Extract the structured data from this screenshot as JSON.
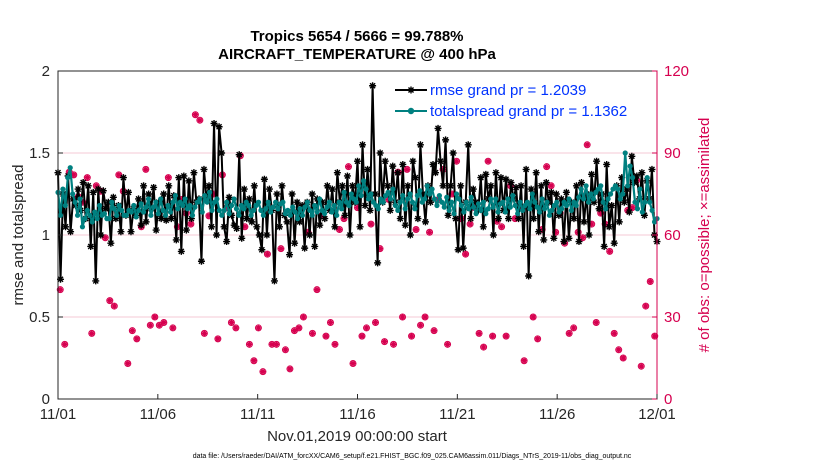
{
  "chart_data": {
    "type": "line",
    "title": "Tropics 5654 / 5666 = 99.788%",
    "subtitle": "AIRCRAFT_TEMPERATURE @ 400 hPa",
    "ylabel": "rmse and totalspread",
    "ylabel_right": "# of obs: o=possible; ×=assimilated",
    "xlabel": "Nov.01,2019 00:00:00 start",
    "footnote": "data file: /Users/raeder/DAI/ATM_forcXX/CAM6_setup/f.e21.FHIST_BGC.f09_025.CAM6assim.011/Diags_NTrS_2019-11/obs_diag_output.nc",
    "xlim": [
      0,
      30
    ],
    "ylim": [
      0,
      2
    ],
    "ylim_right": [
      0,
      120
    ],
    "xticks": [
      0,
      5,
      10,
      15,
      20,
      25,
      30
    ],
    "xtick_labels": [
      "11/01",
      "11/06",
      "11/11",
      "11/16",
      "11/21",
      "11/26",
      "12/01"
    ],
    "yticks": [
      0,
      0.5,
      1,
      1.5,
      2
    ],
    "ytick_labels": [
      "0",
      "0.5",
      "1",
      "1.5",
      "2"
    ],
    "yticks_right": [
      0,
      30,
      60,
      90,
      120
    ],
    "ytick_labels_right": [
      "0",
      "30",
      "60",
      "90",
      "120"
    ],
    "legend_position": "top-right",
    "series": [
      {
        "name": "rmse grand pr = 1.2039",
        "color": "#000000",
        "marker": "asterisk",
        "values": [
          1.38,
          0.73,
          1.25,
          1.05,
          1.36,
          1.02,
          1.22,
          1.18,
          1.28,
          1.15,
          1.32,
          1.1,
          1.3,
          0.93,
          1.26,
          0.72,
          1.28,
          1.0,
          1.27,
          1.16,
          1.2,
          0.95,
          1.23,
          1.1,
          1.18,
          1.02,
          1.35,
          1.12,
          1.26,
          1.02,
          1.16,
          1.12,
          1.22,
          1.06,
          1.3,
          1.08,
          1.25,
          1.16,
          1.29,
          1.03,
          1.2,
          1.1,
          1.25,
          1.09,
          1.3,
          1.1,
          1.24,
          0.97,
          1.35,
          0.9,
          1.36,
          1.03,
          1.33,
          1.1,
          1.38,
          1.2,
          1.22,
          0.84,
          1.4,
          1.22,
          1.3,
          1.05,
          1.68,
          1.0,
          1.66,
          1.5,
          1.05,
          0.96,
          1.23,
          1.12,
          1.06,
          1.04,
          1.49,
          0.98,
          1.28,
          1.1,
          1.22,
          1.08,
          1.3,
          1.05,
          1.0,
          0.91,
          1.34,
          1.0,
          1.28,
          1.15,
          0.72,
          1.25,
          1.05,
          1.3,
          1.12,
          1.08,
          0.88,
          1.25,
          0.95,
          1.2,
          1.08,
          1.18,
          0.92,
          1.2,
          1.0,
          1.25,
          0.93,
          1.22,
          1.06,
          1.2,
          1.1,
          1.3,
          1.15,
          1.28,
          1.05,
          1.38,
          1.2,
          1.3,
          1.12,
          1.36,
          1.0,
          1.3,
          1.2,
          1.45,
          1.05,
          1.55,
          1.18,
          1.4,
          1.15,
          1.91,
          1.25,
          0.83,
          1.5,
          1.2,
          1.45,
          1.3,
          1.15,
          1.42,
          1.2,
          1.38,
          1.1,
          1.43,
          1.06,
          1.3,
          1.0,
          1.45,
          1.35,
          1.1,
          1.55,
          1.25,
          1.08,
          1.3,
          1.2,
          1.43,
          1.38,
          1.65,
          1.45,
          1.3,
          1.58,
          1.12,
          1.3,
          1.5,
          1.1,
          0.91,
          1.3,
          0.92,
          1.2,
          1.55,
          1.1,
          1.28,
          1.2,
          1.15,
          1.35,
          1.05,
          1.37,
          1.22,
          1.3,
          1.0,
          1.38,
          1.1,
          1.35,
          1.15,
          1.34,
          1.1,
          1.32,
          1.22,
          1.29,
          1.1,
          1.3,
          0.93,
          1.4,
          0.75,
          1.28,
          1.1,
          1.38,
          1.02,
          1.3,
          0.97,
          1.32,
          1.2,
          1.26,
          0.98,
          1.25,
          1.12,
          1.22,
          0.96,
          1.26,
          0.98,
          1.2,
          1.1,
          1.3,
          0.96,
          1.32,
          1.08,
          1.25,
          1.0,
          1.37,
          1.2,
          1.45,
          1.16,
          1.25,
          0.93,
          1.43,
          1.05,
          1.18,
          0.95,
          1.3,
          1.08,
          1.35,
          1.2,
          1.28,
          1.14,
          1.48,
          1.32,
          1.36,
          1.22,
          1.38,
          1.12,
          1.33,
          1.22,
          1.4,
          1.0,
          0.96
        ]
      },
      {
        "name": "totalspread grand pr = 1.1362",
        "color": "#008080",
        "marker": "circle",
        "values": [
          1.26,
          1.12,
          1.28,
          1.18,
          1.35,
          1.41,
          1.25,
          1.2,
          1.12,
          1.22,
          1.05,
          1.1,
          1.15,
          1.12,
          1.08,
          1.14,
          1.1,
          1.18,
          1.12,
          1.13,
          1.1,
          1.1,
          1.2,
          1.16,
          1.12,
          1.18,
          1.15,
          1.12,
          1.12,
          1.15,
          1.14,
          1.18,
          1.11,
          1.15,
          1.19,
          1.14,
          1.17,
          1.22,
          1.12,
          1.17,
          1.2,
          1.13,
          1.22,
          1.15,
          1.12,
          1.18,
          1.14,
          1.2,
          1.24,
          1.16,
          1.2,
          1.18,
          1.22,
          1.16,
          1.18,
          1.12,
          1.17,
          1.2,
          1.22,
          1.14,
          1.24,
          1.2,
          1.26,
          1.15,
          1.2,
          1.22,
          1.15,
          1.12,
          1.15,
          1.2,
          1.13,
          1.18,
          1.22,
          1.16,
          1.12,
          1.18,
          1.16,
          1.2,
          1.18,
          1.12,
          1.15,
          1.18,
          1.2,
          1.15,
          1.12,
          1.16,
          1.2,
          1.14,
          1.17,
          1.2,
          1.16,
          1.19,
          1.2,
          1.13,
          1.15,
          1.12,
          1.17,
          1.14,
          1.1,
          1.16,
          1.12,
          1.17,
          1.2,
          1.15,
          1.12,
          1.18,
          1.14,
          1.22,
          1.15,
          1.13,
          1.17,
          1.2,
          1.14,
          1.18,
          1.12,
          1.2,
          1.16,
          1.26,
          1.2,
          1.18,
          1.25,
          1.22,
          1.2,
          1.3,
          1.24,
          1.33,
          1.28,
          1.22,
          1.25,
          1.2,
          1.18,
          1.16,
          1.22,
          1.2,
          1.24,
          1.26,
          1.22,
          1.28,
          1.18,
          1.15,
          1.2,
          1.24,
          1.16,
          1.22,
          1.25,
          1.2,
          1.16,
          1.24,
          1.27,
          1.2,
          1.22,
          1.3,
          1.25,
          1.28,
          1.22,
          1.18,
          1.24,
          1.2,
          1.17,
          1.23,
          1.15,
          1.2,
          1.13,
          1.25,
          1.22,
          1.18,
          1.14,
          1.2,
          1.16,
          1.23,
          1.17,
          1.13,
          1.19,
          1.15,
          1.2,
          1.13,
          1.16,
          1.22,
          1.17,
          1.22,
          1.14,
          1.19,
          1.2,
          1.14,
          1.22,
          1.17,
          1.24,
          1.18,
          1.13,
          1.2,
          1.15,
          1.18,
          1.2,
          1.16,
          1.25,
          1.2,
          1.17,
          1.14,
          1.22,
          1.16,
          1.2,
          1.12,
          1.15,
          1.18,
          1.2,
          1.14,
          1.16,
          1.2,
          1.18,
          1.22,
          1.15,
          1.2,
          1.18,
          1.23,
          1.28,
          1.22,
          1.3,
          1.2,
          1.25,
          1.22,
          1.26,
          1.28,
          1.3,
          1.2,
          1.16,
          1.22,
          1.25,
          1.28,
          1.3,
          1.28,
          1.22,
          1.25,
          1.5,
          1.3,
          1.42,
          1.35,
          1.2,
          1.16,
          1.28,
          1.14,
          1.2,
          1.35,
          1.2,
          1.15,
          1.08,
          1.1
        ]
      },
      {
        "name": "# of obs possible",
        "axis": "right",
        "color": "#d6004f",
        "marker": "circle-open",
        "values": [
          40,
          20,
          83,
          82,
          74,
          72,
          81,
          24,
          78,
          76,
          59,
          36,
          34,
          82,
          76,
          13,
          25,
          22,
          63,
          84,
          27,
          30,
          27,
          28,
          81,
          26,
          63,
          73,
          68,
          64,
          104,
          102,
          24,
          67,
          75,
          22,
          82,
          70,
          28,
          26,
          89,
          63,
          20,
          14,
          26,
          10,
          53,
          20,
          20,
          55,
          18,
          11,
          25,
          26,
          30,
          61,
          24,
          40,
          67,
          23,
          28,
          20,
          62,
          66,
          85,
          13,
          70,
          23,
          26,
          64,
          28,
          55,
          21,
          73,
          20,
          83,
          30,
          84,
          23,
          62,
          27,
          30,
          61,
          25,
          73,
          84,
          20,
          75,
          87,
          66,
          53,
          64,
          70,
          24,
          19,
          87,
          23,
          65,
          63,
          23,
          78,
          66,
          70,
          14,
          71,
          30,
          22,
          62,
          85,
          78,
          61,
          68,
          57,
          24,
          26,
          61,
          59,
          93,
          64,
          28,
          68,
          64,
          54,
          24,
          18,
          15,
          69,
          70,
          80,
          12,
          34,
          43,
          23
        ]
      },
      {
        "name": "# of obs assimilated",
        "axis": "right",
        "color": "#d6004f",
        "marker": "cross",
        "values": [
          40,
          20,
          83,
          82,
          74,
          72,
          81,
          24,
          78,
          76,
          59,
          36,
          34,
          82,
          76,
          13,
          25,
          22,
          63,
          84,
          27,
          30,
          27,
          28,
          81,
          26,
          63,
          73,
          68,
          64,
          104,
          102,
          24,
          67,
          75,
          22,
          82,
          70,
          28,
          26,
          89,
          63,
          20,
          14,
          26,
          10,
          53,
          20,
          20,
          55,
          18,
          11,
          25,
          26,
          30,
          61,
          24,
          40,
          67,
          23,
          28,
          20,
          62,
          66,
          85,
          13,
          70,
          23,
          26,
          64,
          28,
          55,
          21,
          73,
          20,
          83,
          30,
          84,
          23,
          62,
          27,
          30,
          61,
          25,
          73,
          84,
          20,
          75,
          87,
          66,
          53,
          64,
          70,
          24,
          19,
          87,
          23,
          65,
          63,
          23,
          78,
          66,
          70,
          14,
          71,
          30,
          22,
          62,
          85,
          78,
          61,
          68,
          57,
          24,
          26,
          61,
          59,
          93,
          64,
          28,
          68,
          64,
          54,
          24,
          18,
          15,
          69,
          70,
          80,
          12,
          34,
          43,
          23
        ]
      }
    ]
  }
}
